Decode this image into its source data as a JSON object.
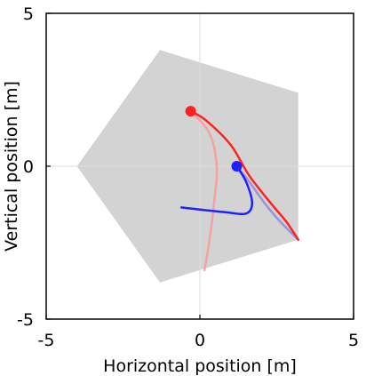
{
  "chart_data": {
    "type": "line",
    "title": "",
    "xlabel": "Horizontal position [m]",
    "ylabel": "Vertical position [m]",
    "xlim": [
      -5,
      5
    ],
    "ylim": [
      -5,
      5
    ],
    "x_ticks": [
      "-5",
      "0",
      "5"
    ],
    "y_ticks": [
      "-5",
      "0",
      "5"
    ],
    "grid": "lines through origin",
    "region": {
      "name": "",
      "color": "#d3d3d3",
      "polygon": [
        [
          -1.3,
          3.8
        ],
        [
          3.2,
          2.4
        ],
        [
          3.2,
          -2.4
        ],
        [
          -1.3,
          -3.8
        ],
        [
          -4.0,
          0.0
        ]
      ]
    },
    "series": [
      {
        "color": "#ff2020",
        "style": "solid",
        "points": [
          [
            -0.3,
            1.8
          ],
          [
            0.2,
            1.5
          ],
          [
            1.0,
            0.7
          ],
          [
            1.6,
            -0.3
          ],
          [
            2.3,
            -1.2
          ],
          [
            2.8,
            -1.8
          ],
          [
            3.2,
            -2.4
          ]
        ],
        "marker": [
          -0.3,
          1.8
        ]
      },
      {
        "color": "#ff9090",
        "style": "faded",
        "points": [
          [
            -0.3,
            1.8
          ],
          [
            0.3,
            1.1
          ],
          [
            0.55,
            0.0
          ],
          [
            0.45,
            -1.3
          ],
          [
            0.3,
            -2.5
          ],
          [
            0.15,
            -3.4
          ]
        ]
      },
      {
        "color": "#2020ff",
        "style": "solid",
        "points": [
          [
            1.2,
            0.0
          ],
          [
            1.5,
            -0.5
          ],
          [
            1.7,
            -1.2
          ],
          [
            1.5,
            -1.55
          ],
          [
            0.8,
            -1.5
          ],
          [
            -0.6,
            -1.35
          ]
        ],
        "marker": [
          1.2,
          0.0
        ]
      },
      {
        "color": "#8080e0",
        "style": "faded",
        "points": [
          [
            1.2,
            0.0
          ],
          [
            1.6,
            -0.5
          ],
          [
            2.1,
            -1.2
          ],
          [
            2.6,
            -1.8
          ],
          [
            3.2,
            -2.4
          ]
        ]
      }
    ]
  }
}
